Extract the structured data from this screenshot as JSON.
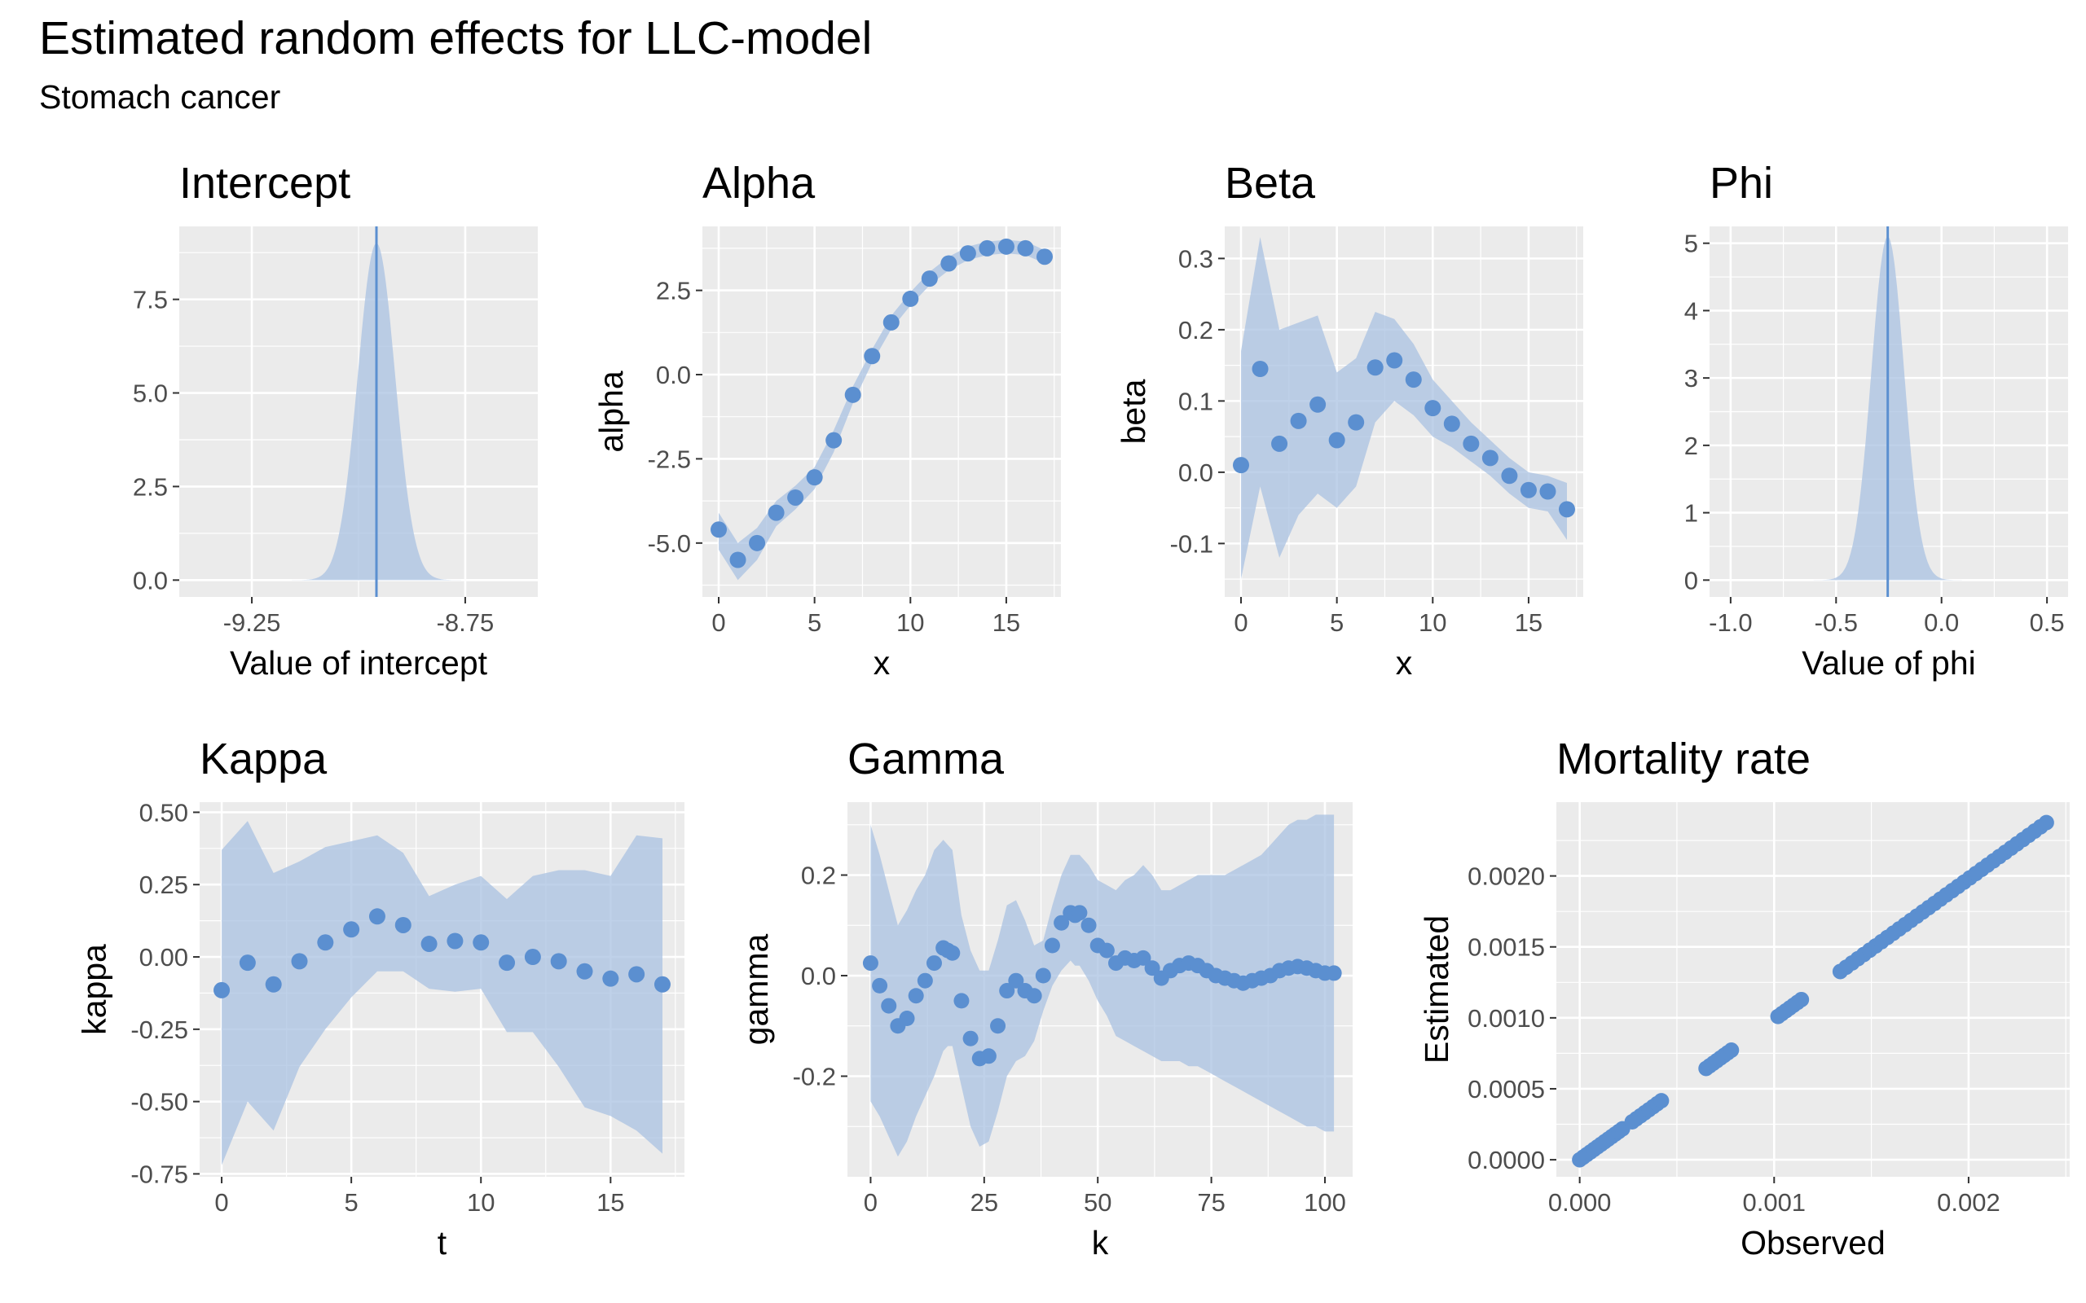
{
  "title": "Estimated random effects for LLC-model",
  "subtitle": "Stomach cancer",
  "colors": {
    "panel_bg": "#ebebeb",
    "grid": "#ffffff",
    "point": "#5b8fd0",
    "band": "#a9c2e2",
    "line": "#5b8fd0",
    "axis_text": "#4d4d4d"
  },
  "chart_data": [
    {
      "type": "area",
      "title": "Intercept",
      "xlabel": "Value of intercept",
      "ylabel": "",
      "xlim": [
        -9.42,
        -8.58
      ],
      "ylim": [
        -0.45,
        9.45
      ],
      "xticks": [
        -9.25,
        -8.75
      ],
      "xticklabels": [
        "-9.25",
        "-8.75"
      ],
      "yticks": [
        0,
        2.5,
        5,
        7.5
      ],
      "yticklabels": [
        "0.0",
        "2.5",
        "5.0",
        "7.5"
      ],
      "density": {
        "mean": -8.958,
        "sd": 0.044,
        "peak": 9.0
      },
      "vline": -8.958
    },
    {
      "type": "scatter",
      "title": "Alpha",
      "xlabel": "x",
      "ylabel": "alpha",
      "xlim": [
        -0.85,
        17.85
      ],
      "ylim": [
        -6.6,
        4.4
      ],
      "xticks": [
        0,
        5,
        10,
        15
      ],
      "xticklabels": [
        "0",
        "5",
        "10",
        "15"
      ],
      "yticks": [
        -5,
        -2.5,
        0,
        2.5
      ],
      "yticklabels": [
        "-5.0",
        "-2.5",
        "0.0",
        "2.5"
      ],
      "x": [
        0,
        1,
        2,
        3,
        4,
        5,
        6,
        7,
        8,
        9,
        10,
        11,
        12,
        13,
        14,
        15,
        16,
        17
      ],
      "y": [
        -4.6,
        -5.5,
        -5.0,
        -4.1,
        -3.65,
        -3.05,
        -1.95,
        -0.6,
        0.55,
        1.55,
        2.25,
        2.85,
        3.3,
        3.6,
        3.75,
        3.8,
        3.75,
        3.5
      ],
      "lower": [
        -5.2,
        -6.1,
        -5.5,
        -4.5,
        -4.0,
        -3.4,
        -2.3,
        -0.85,
        0.35,
        1.35,
        2.05,
        2.65,
        3.1,
        3.4,
        3.55,
        3.6,
        3.55,
        3.3
      ],
      "upper": [
        -4.1,
        -5.0,
        -4.55,
        -3.75,
        -3.3,
        -2.75,
        -1.65,
        -0.35,
        0.75,
        1.75,
        2.45,
        3.05,
        3.5,
        3.8,
        3.95,
        4.0,
        3.95,
        3.7
      ]
    },
    {
      "type": "scatter",
      "title": "Beta",
      "xlabel": "x",
      "ylabel": "beta",
      "xlim": [
        -0.85,
        17.85
      ],
      "ylim": [
        -0.175,
        0.345
      ],
      "xticks": [
        0,
        5,
        10,
        15
      ],
      "xticklabels": [
        "0",
        "5",
        "10",
        "15"
      ],
      "yticks": [
        -0.1,
        0,
        0.1,
        0.2,
        0.3
      ],
      "yticklabels": [
        "-0.1",
        "0.0",
        "0.1",
        "0.2",
        "0.3"
      ],
      "x": [
        0,
        1,
        2,
        3,
        4,
        5,
        6,
        7,
        8,
        9,
        10,
        11,
        12,
        13,
        14,
        15,
        16,
        17
      ],
      "y": [
        0.01,
        0.145,
        0.04,
        0.072,
        0.095,
        0.045,
        0.07,
        0.147,
        0.157,
        0.13,
        0.09,
        0.068,
        0.04,
        0.02,
        -0.005,
        -0.025,
        -0.027,
        -0.052
      ],
      "lower": [
        -0.15,
        -0.02,
        -0.12,
        -0.06,
        -0.03,
        -0.05,
        -0.02,
        0.07,
        0.1,
        0.08,
        0.05,
        0.035,
        0.015,
        -0.005,
        -0.03,
        -0.05,
        -0.055,
        -0.095
      ],
      "upper": [
        0.17,
        0.33,
        0.2,
        0.21,
        0.22,
        0.14,
        0.16,
        0.225,
        0.215,
        0.18,
        0.13,
        0.1,
        0.07,
        0.045,
        0.02,
        0.0,
        -0.005,
        -0.015
      ]
    },
    {
      "type": "area",
      "title": "Phi",
      "xlabel": "Value of phi",
      "ylabel": "",
      "xlim": [
        -1.1,
        0.6
      ],
      "ylim": [
        -0.25,
        5.25
      ],
      "xticks": [
        -1,
        -0.5,
        0,
        0.5
      ],
      "xticklabels": [
        "-1.0",
        "-0.5",
        "0.0",
        "0.5"
      ],
      "yticks": [
        0,
        1,
        2,
        3,
        4,
        5
      ],
      "yticklabels": [
        "0",
        "1",
        "2",
        "3",
        "4",
        "5"
      ],
      "density": {
        "mean": -0.255,
        "sd": 0.078,
        "peak": 5.1
      },
      "vline": -0.255
    },
    {
      "type": "scatter",
      "title": "Kappa",
      "xlabel": "t",
      "ylabel": "kappa",
      "xlim": [
        -0.85,
        17.85
      ],
      "ylim": [
        -0.76,
        0.535
      ],
      "xticks": [
        0,
        5,
        10,
        15
      ],
      "xticklabels": [
        "0",
        "5",
        "10",
        "15"
      ],
      "yticks": [
        -0.75,
        -0.5,
        -0.25,
        0,
        0.25,
        0.5
      ],
      "yticklabels": [
        "-0.75",
        "-0.50",
        "-0.25",
        "0.00",
        "0.25",
        "0.50"
      ],
      "x": [
        0,
        1,
        2,
        3,
        4,
        5,
        6,
        7,
        8,
        9,
        10,
        11,
        12,
        13,
        14,
        15,
        16,
        17
      ],
      "y": [
        -0.115,
        -0.02,
        -0.095,
        -0.015,
        0.05,
        0.095,
        0.14,
        0.11,
        0.045,
        0.055,
        0.05,
        -0.02,
        0.0,
        -0.015,
        -0.05,
        -0.075,
        -0.06,
        -0.095
      ],
      "lower": [
        -0.72,
        -0.5,
        -0.6,
        -0.38,
        -0.25,
        -0.14,
        -0.05,
        -0.05,
        -0.11,
        -0.12,
        -0.11,
        -0.26,
        -0.26,
        -0.38,
        -0.52,
        -0.55,
        -0.6,
        -0.68
      ],
      "upper": [
        0.37,
        0.47,
        0.29,
        0.33,
        0.38,
        0.4,
        0.42,
        0.36,
        0.21,
        0.25,
        0.28,
        0.2,
        0.28,
        0.3,
        0.3,
        0.28,
        0.42,
        0.41
      ]
    },
    {
      "type": "scatter",
      "title": "Gamma",
      "xlabel": "k",
      "ylabel": "gamma",
      "xlim": [
        -5.1,
        106.1
      ],
      "ylim": [
        -0.4,
        0.345
      ],
      "xticks": [
        0,
        25,
        50,
        75,
        100
      ],
      "xticklabels": [
        "0",
        "25",
        "50",
        "75",
        "100"
      ],
      "yticks": [
        -0.2,
        0,
        0.2
      ],
      "yticklabels": [
        "-0.2",
        "0.0",
        "0.2"
      ],
      "x": [
        0,
        2,
        4,
        6,
        8,
        10,
        12,
        14,
        16,
        17,
        18,
        20,
        22,
        24,
        26,
        28,
        30,
        32,
        34,
        36,
        38,
        40,
        42,
        44,
        45,
        46,
        48,
        50,
        52,
        54,
        56,
        58,
        60,
        62,
        64,
        66,
        68,
        70,
        72,
        74,
        76,
        78,
        80,
        82,
        84,
        86,
        88,
        90,
        92,
        94,
        96,
        98,
        100,
        102
      ],
      "y": [
        0.025,
        -0.02,
        -0.06,
        -0.1,
        -0.085,
        -0.04,
        -0.01,
        0.025,
        0.055,
        0.05,
        0.045,
        -0.05,
        -0.125,
        -0.165,
        -0.16,
        -0.1,
        -0.03,
        -0.01,
        -0.03,
        -0.04,
        0.0,
        0.06,
        0.105,
        0.125,
        0.12,
        0.125,
        0.1,
        0.06,
        0.05,
        0.025,
        0.035,
        0.03,
        0.035,
        0.015,
        -0.005,
        0.01,
        0.02,
        0.025,
        0.02,
        0.01,
        0.0,
        -0.005,
        -0.01,
        -0.015,
        -0.01,
        -0.005,
        0.0,
        0.01,
        0.015,
        0.018,
        0.015,
        0.01,
        0.005,
        0.005
      ],
      "lower": [
        -0.25,
        -0.28,
        -0.32,
        -0.36,
        -0.33,
        -0.28,
        -0.24,
        -0.2,
        -0.15,
        -0.14,
        -0.14,
        -0.22,
        -0.3,
        -0.34,
        -0.33,
        -0.27,
        -0.2,
        -0.17,
        -0.16,
        -0.13,
        -0.07,
        -0.02,
        0.01,
        0.03,
        0.02,
        0.02,
        -0.01,
        -0.05,
        -0.08,
        -0.12,
        -0.13,
        -0.14,
        -0.15,
        -0.16,
        -0.17,
        -0.17,
        -0.17,
        -0.18,
        -0.18,
        -0.19,
        -0.2,
        -0.21,
        -0.22,
        -0.23,
        -0.24,
        -0.25,
        -0.26,
        -0.27,
        -0.28,
        -0.29,
        -0.3,
        -0.3,
        -0.31,
        -0.31
      ],
      "upper": [
        0.3,
        0.24,
        0.17,
        0.1,
        0.13,
        0.17,
        0.2,
        0.25,
        0.27,
        0.26,
        0.25,
        0.12,
        0.05,
        0.01,
        0.01,
        0.07,
        0.14,
        0.15,
        0.11,
        0.06,
        0.07,
        0.14,
        0.2,
        0.24,
        0.24,
        0.24,
        0.22,
        0.19,
        0.18,
        0.17,
        0.19,
        0.2,
        0.22,
        0.2,
        0.17,
        0.17,
        0.18,
        0.19,
        0.2,
        0.2,
        0.2,
        0.2,
        0.21,
        0.22,
        0.23,
        0.24,
        0.26,
        0.28,
        0.3,
        0.31,
        0.31,
        0.32,
        0.32,
        0.32
      ]
    },
    {
      "type": "scatter",
      "title": "Mortality rate",
      "xlabel": "Observed",
      "ylabel": "Estimated",
      "xlim": [
        -0.00012,
        0.00252
      ],
      "ylim": [
        -0.00012,
        0.00252
      ],
      "xticks": [
        0,
        0.001,
        0.002
      ],
      "xticklabels": [
        "0.000",
        "0.001",
        "0.002"
      ],
      "yticks": [
        0,
        0.0005,
        0.001,
        0.0015,
        0.002
      ],
      "yticklabels": [
        "0.0000",
        "0.0005",
        "0.0010",
        "0.0015",
        "0.0020"
      ],
      "segments": [
        [
          0.0,
          0.00022,
          13
        ],
        [
          0.00027,
          0.00042,
          8
        ],
        [
          0.00065,
          0.00078,
          8
        ],
        [
          0.00102,
          0.00114,
          7
        ],
        [
          0.00134,
          0.0024,
          36
        ]
      ]
    }
  ]
}
